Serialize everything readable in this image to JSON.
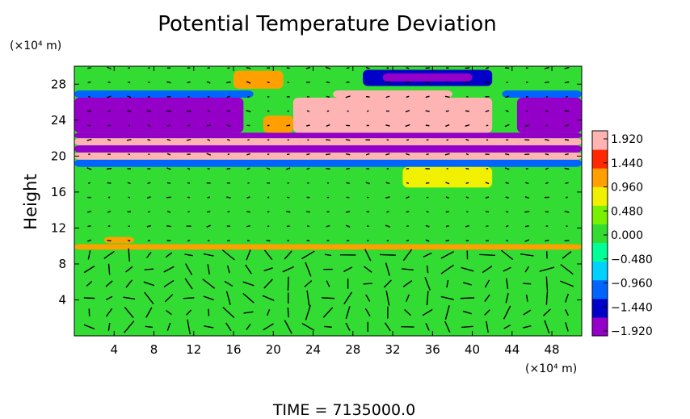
{
  "chart_data": {
    "type": "heatmap",
    "title": "Potential Temperature Deviation",
    "ylabel": "Height",
    "y_unit": "(×10⁴ m)",
    "x_unit": "(×10⁴ m)",
    "footer": "TIME  =  7135000.0",
    "xlim": [
      0,
      51
    ],
    "ylim": [
      0,
      30
    ],
    "x_ticks": [
      "4",
      "8",
      "12",
      "16",
      "20",
      "24",
      "28",
      "32",
      "36",
      "40",
      "44",
      "48"
    ],
    "y_ticks": [
      "4",
      "8",
      "12",
      "16",
      "20",
      "24",
      "28"
    ],
    "x_tick_values": [
      4,
      8,
      12,
      16,
      20,
      24,
      28,
      32,
      36,
      40,
      44,
      48
    ],
    "y_tick_values": [
      4,
      8,
      12,
      16,
      20,
      24,
      28
    ],
    "colorbar": {
      "labels": [
        "1.920",
        "1.440",
        "0.960",
        "0.480",
        "0.000",
        "−0.480",
        "−0.960",
        "−1.440",
        "−1.920"
      ],
      "range": [
        -1.92,
        1.92
      ],
      "colors": [
        "#9400c8",
        "#0000c8",
        "#0064ff",
        "#00d2ff",
        "#00ff96",
        "#32dc32",
        "#78f000",
        "#f0f000",
        "#ffa000",
        "#ff2800",
        "#ffb4b4"
      ]
    },
    "background_value": 0.1,
    "regions": [
      {
        "x": [
          0,
          51
        ],
        "y": [
          0,
          9.8
        ],
        "value": 0.12
      },
      {
        "x": [
          0,
          51
        ],
        "y": [
          9.6,
          10.2
        ],
        "value": 0.9
      },
      {
        "x": [
          3,
          6
        ],
        "y": [
          10.3,
          11
        ],
        "value": 1.2
      },
      {
        "x": [
          0,
          51
        ],
        "y": [
          18.8,
          19.6
        ],
        "value": -1.0
      },
      {
        "x": [
          0,
          51
        ],
        "y": [
          19.6,
          20.4
        ],
        "value": 1.92
      },
      {
        "x": [
          0,
          51
        ],
        "y": [
          20.4,
          21.2
        ],
        "value": -1.92
      },
      {
        "x": [
          0,
          51
        ],
        "y": [
          21.2,
          22.0
        ],
        "value": 1.92
      },
      {
        "x": [
          0,
          51
        ],
        "y": [
          22.0,
          22.6
        ],
        "value": -1.92
      },
      {
        "x": [
          0,
          17
        ],
        "y": [
          22.6,
          26.5
        ],
        "value": -1.92
      },
      {
        "x": [
          0,
          18
        ],
        "y": [
          26.5,
          27.3
        ],
        "value": -1.2
      },
      {
        "x": [
          44.5,
          51
        ],
        "y": [
          22.6,
          26.5
        ],
        "value": -1.92
      },
      {
        "x": [
          43,
          51
        ],
        "y": [
          26.5,
          27.3
        ],
        "value": -1.2
      },
      {
        "x": [
          22,
          42
        ],
        "y": [
          22.6,
          26.5
        ],
        "value": 1.92
      },
      {
        "x": [
          19,
          22
        ],
        "y": [
          22.6,
          24.5
        ],
        "value": 1.2
      },
      {
        "x": [
          26,
          38
        ],
        "y": [
          26.5,
          27.3
        ],
        "value": 1.92
      },
      {
        "x": [
          16,
          21
        ],
        "y": [
          27.5,
          29.5
        ],
        "value": 1.0
      },
      {
        "x": [
          29,
          42
        ],
        "y": [
          27.8,
          29.6
        ],
        "value": -1.3
      },
      {
        "x": [
          31,
          40
        ],
        "y": [
          28.3,
          29.2
        ],
        "value": -1.92
      },
      {
        "x": [
          33,
          42
        ],
        "y": [
          16.5,
          18.8
        ],
        "value": 0.8
      }
    ]
  }
}
